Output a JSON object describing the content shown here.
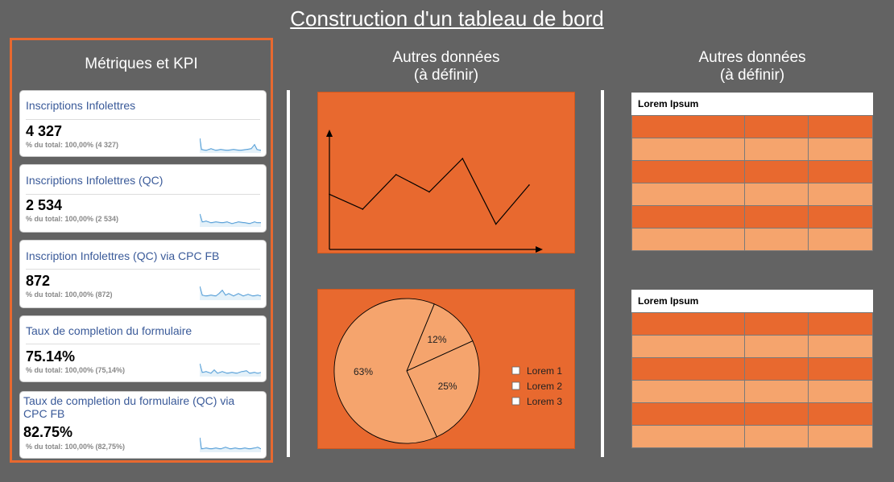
{
  "title": "Construction d'un tableau de bord",
  "kpi_panel": {
    "title": "Métriques et KPI",
    "cards": [
      {
        "name": "Inscriptions Infolettres",
        "value": "4 327",
        "sub": "% du total: 100,00% (4 327)"
      },
      {
        "name": "Inscriptions Infolettres (QC)",
        "value": "2 534",
        "sub": "% du total: 100,00% (2 534)"
      },
      {
        "name": "Inscription Infolettres (QC) via CPC FB",
        "value": "872",
        "sub": "% du total: 100,00% (872)"
      },
      {
        "name": "Taux de completion du formulaire",
        "value": "75.14%",
        "sub": "% du total: 100,00% (75,14%)"
      },
      {
        "name": "Taux de completion du formulaire (QC) via CPC FB",
        "value": "82.75%",
        "sub": "% du total: 100,00% (82,75%)"
      }
    ]
  },
  "middle": {
    "title_line1": "Autres données",
    "title_line2": "(à définir)"
  },
  "right": {
    "title_line1": "Autres données",
    "title_line2": "(à définir)",
    "table1_header": "Lorem Ipsum",
    "table2_header": "Lorem Ipsum"
  },
  "colors": {
    "accent": "#e8692f",
    "light_accent": "#f5a46d",
    "background": "#636363",
    "kpi_title": "#3a5a99",
    "sparkline": "#3b8fd1"
  },
  "chart_data": [
    {
      "type": "line",
      "title": "",
      "xlabel": "",
      "ylabel": "",
      "x": [
        1,
        2,
        3,
        4,
        5,
        6,
        7
      ],
      "values": [
        48,
        35,
        65,
        50,
        79,
        22,
        56
      ],
      "ylim": [
        0,
        100
      ]
    },
    {
      "type": "pie",
      "title": "",
      "slices": [
        {
          "label": "12%",
          "value": 12
        },
        {
          "label": "25%",
          "value": 25
        },
        {
          "label": "63%",
          "value": 63
        }
      ],
      "legend": [
        "Lorem 1",
        "Lorem 2",
        "Lorem 3"
      ],
      "legend_position": "right"
    }
  ]
}
